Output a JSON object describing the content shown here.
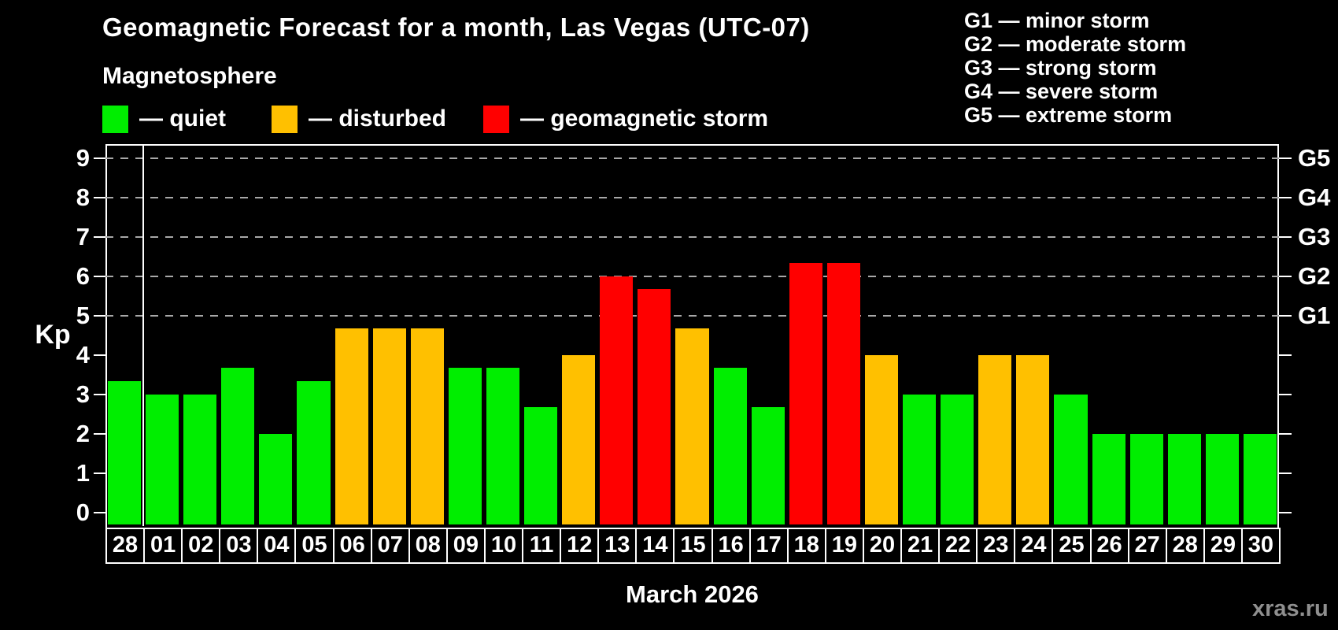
{
  "header": {
    "title": "Geomagnetic Forecast for a month, Las Vegas (UTC-07)",
    "subtitle": "Magnetosphere"
  },
  "legend": {
    "items": [
      {
        "key": "quiet",
        "label": "— quiet",
        "color": "#00ee00"
      },
      {
        "key": "disturbed",
        "label": "— disturbed",
        "color": "#ffc000"
      },
      {
        "key": "storm",
        "label": "— geomagnetic storm",
        "color": "#ff0000"
      }
    ]
  },
  "g_legend": {
    "items": [
      "G1 — minor storm",
      "G2 — moderate storm",
      "G3 — strong storm",
      "G4 — severe storm",
      "G5 — extreme storm"
    ]
  },
  "footer": {
    "watermark": "xras.ru"
  },
  "chart_data": {
    "type": "bar",
    "title": "Geomagnetic Forecast for a month, Las Vegas (UTC-07)",
    "xlabel": "March 2026",
    "ylabel": "Kp",
    "ylim": [
      -0.35,
      9.35
    ],
    "yticks": [
      0,
      1,
      2,
      3,
      4,
      5,
      6,
      7,
      8,
      9
    ],
    "gridlines_at": [
      5,
      6,
      7,
      8,
      9
    ],
    "grid": "dashed-horizontal",
    "legend_position": "top-left",
    "right_axis_labels": [
      {
        "label": "G1",
        "value": 5
      },
      {
        "label": "G2",
        "value": 6
      },
      {
        "label": "G3",
        "value": 7
      },
      {
        "label": "G4",
        "value": 8
      },
      {
        "label": "G5",
        "value": 9
      }
    ],
    "month_boundary_index": 1,
    "categories": [
      "28",
      "01",
      "02",
      "03",
      "04",
      "05",
      "06",
      "07",
      "08",
      "09",
      "10",
      "11",
      "12",
      "13",
      "14",
      "15",
      "16",
      "17",
      "18",
      "19",
      "20",
      "21",
      "22",
      "23",
      "24",
      "25",
      "26",
      "27",
      "28",
      "29",
      "30"
    ],
    "values": [
      3.33,
      3,
      3,
      3.67,
      2,
      3.33,
      4.67,
      4.67,
      4.67,
      3.67,
      3.67,
      2.67,
      4,
      6,
      5.67,
      4.67,
      3.67,
      2.67,
      6.33,
      6.33,
      4,
      3,
      3,
      4,
      4,
      3,
      2,
      2,
      2,
      2,
      2
    ],
    "states": [
      "quiet",
      "quiet",
      "quiet",
      "quiet",
      "quiet",
      "quiet",
      "disturbed",
      "disturbed",
      "disturbed",
      "quiet",
      "quiet",
      "quiet",
      "disturbed",
      "storm",
      "storm",
      "disturbed",
      "quiet",
      "quiet",
      "storm",
      "storm",
      "disturbed",
      "quiet",
      "quiet",
      "disturbed",
      "disturbed",
      "quiet",
      "quiet",
      "quiet",
      "quiet",
      "quiet",
      "quiet"
    ],
    "state_colors": {
      "quiet": "#00ee00",
      "disturbed": "#ffc000",
      "storm": "#ff0000"
    }
  }
}
